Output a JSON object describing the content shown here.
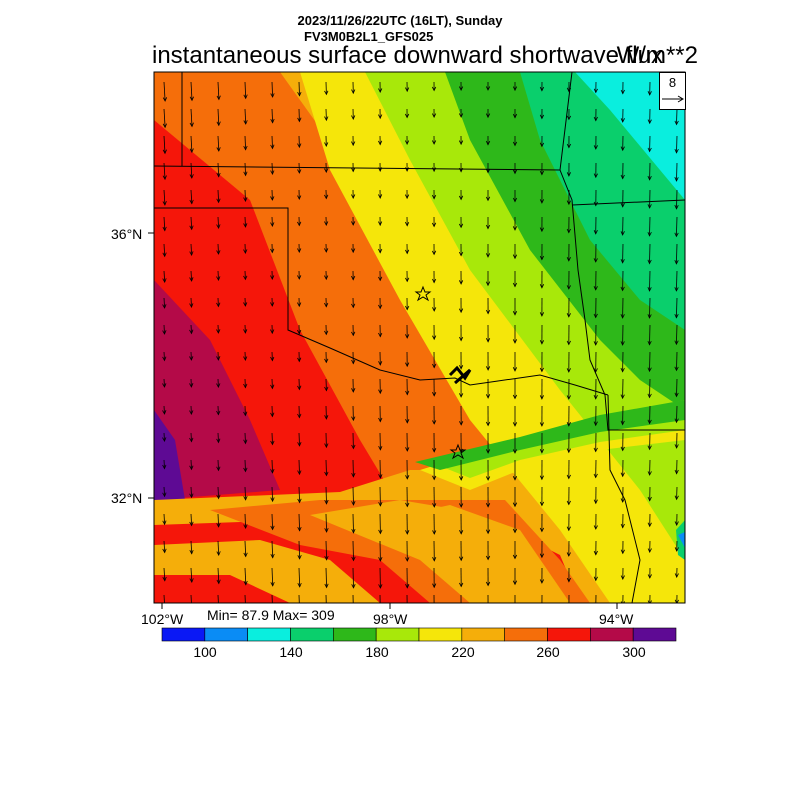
{
  "header": {
    "line1": "2023/11/26/22UTC (16LT), Sunday",
    "line2": "FV3M0B2L1_GFS025",
    "variable": "instantaneous surface downward shortwave flux",
    "units": "W/m**2"
  },
  "vector_ref": {
    "value": "8"
  },
  "axes": {
    "lat_labels": [
      "36°N",
      "32°N"
    ],
    "lon_labels": [
      "102°W",
      "98°W",
      "94°W"
    ]
  },
  "stats": {
    "text": "Min= 87.9 Max= 309"
  },
  "colorbar": {
    "colors": [
      "#0a18f5",
      "#0a8cf5",
      "#0aeede",
      "#0acf6c",
      "#2eb81a",
      "#a8e80a",
      "#f5e60a",
      "#f5ae0a",
      "#f56e0a",
      "#f5160a",
      "#b40a48",
      "#5e0a94"
    ],
    "tick_labels": [
      "100",
      "140",
      "180",
      "220",
      "260",
      "300"
    ]
  },
  "colors": {
    "blue": "#0a18f5",
    "sky": "#0a8cf5",
    "cyan": "#0aeede",
    "seagreen": "#0acf6c",
    "green": "#2eb81a",
    "lime": "#a8e80a",
    "yellow": "#f5e60a",
    "orange_light": "#f5ae0a",
    "orange": "#f56e0a",
    "red": "#f5160a",
    "crimson": "#b40a48",
    "purple": "#5e0a94"
  }
}
